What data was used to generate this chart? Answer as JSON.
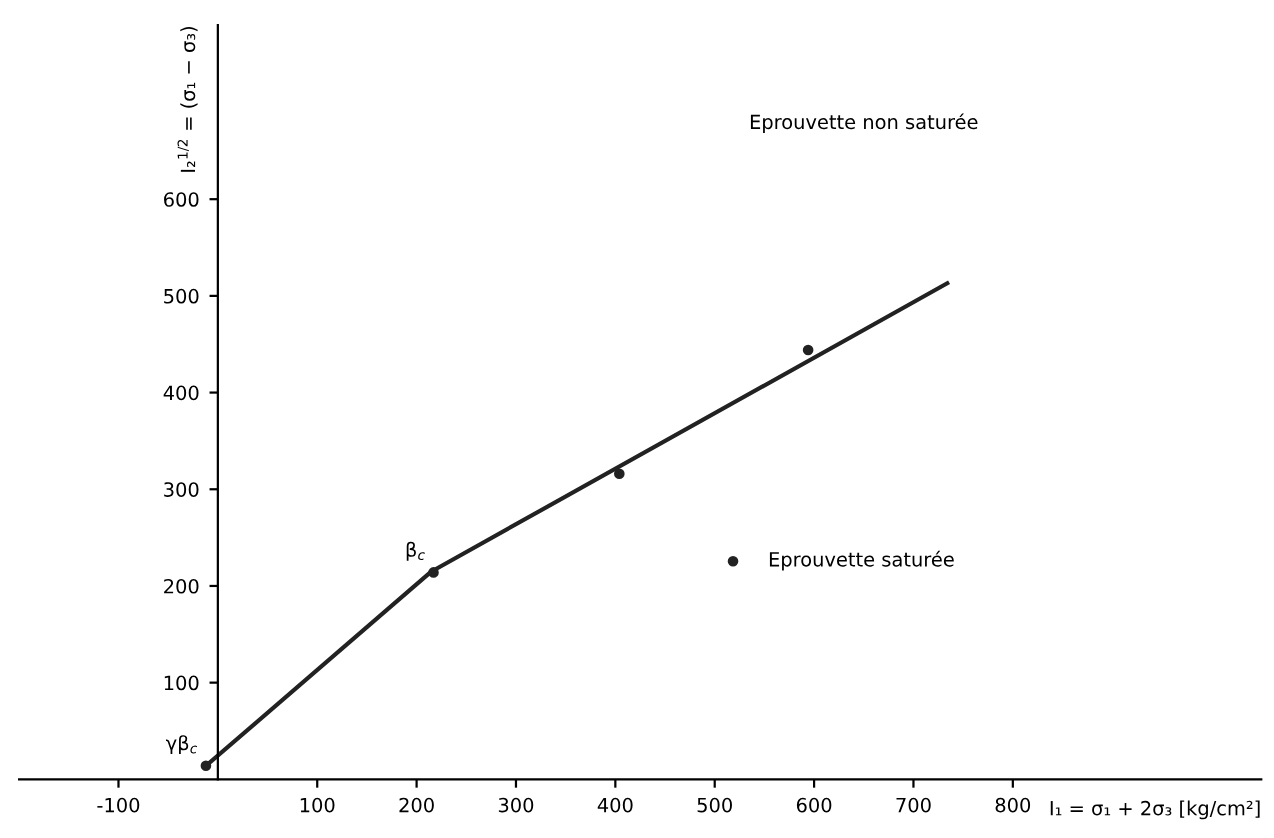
{
  "chart_data": {
    "type": "line",
    "xlabel": "I₁ = σ₁ + 2σ₃ [kg/cm²]",
    "ylabel": "I₂$^{1/2}$ = (σ₁ − σ₃)",
    "series": [
      {
        "color": "#222222",
        "x": [
          -12,
          215,
          734
        ],
        "values": [
          14,
          215,
          513
        ]
      },
      {
        "type": "scatter",
        "marker": "circle",
        "name": "Eprouvette saturée",
        "color": "#222222",
        "x": [
          -12,
          217,
          404,
          594
        ],
        "values": [
          14,
          214,
          316,
          444
        ]
      }
    ],
    "annotations": [
      {
        "text": "β$_{c}$",
        "x": 217,
        "y": 214
      },
      {
        "text": "γβ$_{c}$",
        "x": -12,
        "y": 14
      },
      "Eprouvette non saturée"
    ],
    "xlim": [
      -200,
      1050
    ],
    "ylim": [
      0,
      780
    ],
    "xticks": [
      -100,
      100,
      200,
      300,
      400,
      500,
      600,
      700,
      800
    ],
    "yticks": [
      100,
      200,
      300,
      400,
      500,
      600
    ],
    "grid": false,
    "legend": "right"
  }
}
